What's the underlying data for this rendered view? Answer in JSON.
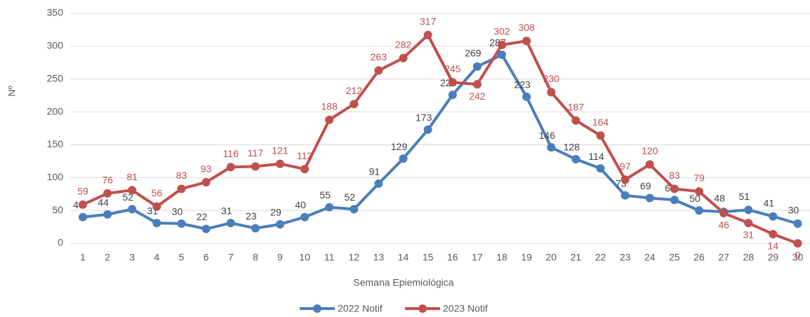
{
  "chart_data": {
    "type": "line",
    "y_label": "Nº",
    "x_label": "Semana Epiemiológica",
    "categories": [
      "1",
      "2",
      "3",
      "4",
      "5",
      "6",
      "7",
      "8",
      "9",
      "10",
      "11",
      "12",
      "13",
      "14",
      "15",
      "16",
      "17",
      "18",
      "19",
      "20",
      "21",
      "22",
      "23",
      "24",
      "25",
      "26",
      "27",
      "28",
      "29",
      "30"
    ],
    "series": [
      {
        "name": "2022 Notif",
        "color": "#4a7ebb",
        "label_color": "#404040",
        "values": [
          40,
          44,
          52,
          31,
          30,
          22,
          31,
          23,
          29,
          40,
          55,
          52,
          91,
          129,
          173,
          226,
          269,
          287,
          223,
          146,
          128,
          114,
          73,
          69,
          66,
          50,
          48,
          51,
          41,
          30
        ]
      },
      {
        "name": "2023 Notif",
        "color": "#c0504d",
        "label_color": "#c0504d",
        "values": [
          59,
          76,
          81,
          56,
          83,
          93,
          116,
          117,
          121,
          113,
          188,
          212,
          263,
          282,
          317,
          245,
          242,
          302,
          308,
          230,
          187,
          164,
          97,
          120,
          83,
          79,
          46,
          31,
          14,
          0
        ]
      }
    ],
    "ylim": [
      0,
      350
    ],
    "yticks": [
      0,
      50,
      100,
      150,
      200,
      250,
      300,
      350
    ],
    "grid": true,
    "legend": "bottom"
  }
}
